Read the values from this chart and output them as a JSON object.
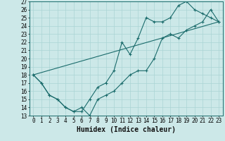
{
  "xlabel": "Humidex (Indice chaleur)",
  "bg_color": "#cce8e8",
  "line_color": "#1a6b6b",
  "grid_color": "#aad4d4",
  "xlim": [
    -0.5,
    23.5
  ],
  "ylim": [
    13,
    27
  ],
  "xticks": [
    0,
    1,
    2,
    3,
    4,
    5,
    6,
    7,
    8,
    9,
    10,
    11,
    12,
    13,
    14,
    15,
    16,
    17,
    18,
    19,
    20,
    21,
    22,
    23
  ],
  "yticks": [
    13,
    14,
    15,
    16,
    17,
    18,
    19,
    20,
    21,
    22,
    23,
    24,
    25,
    26,
    27
  ],
  "line1_x": [
    0,
    1,
    2,
    3,
    4,
    5,
    6,
    7,
    8,
    9,
    10,
    11,
    12,
    13,
    14,
    15,
    16,
    17,
    18,
    19,
    20,
    21,
    22,
    23
  ],
  "line1_y": [
    18,
    17,
    15.5,
    15,
    14,
    13.5,
    13.5,
    15,
    16.5,
    17,
    18.5,
    22,
    20.5,
    22.5,
    25,
    24.5,
    24.5,
    25,
    26.5,
    27,
    26,
    25.5,
    25,
    24.5
  ],
  "line2_x": [
    0,
    1,
    2,
    3,
    4,
    5,
    6,
    7,
    8,
    9,
    10,
    11,
    12,
    13,
    14,
    15,
    16,
    17,
    18,
    19,
    20,
    21,
    22,
    23
  ],
  "line2_y": [
    18,
    17,
    15.5,
    15,
    14,
    13.5,
    14,
    13,
    15,
    15.5,
    16,
    17,
    18,
    18.5,
    18.5,
    20,
    22.5,
    23,
    22.5,
    23.5,
    24,
    24.5,
    26,
    24.5
  ],
  "line3_x": [
    0,
    23
  ],
  "line3_y": [
    18,
    24.5
  ],
  "tick_fontsize": 5.5,
  "xlabel_fontsize": 7
}
